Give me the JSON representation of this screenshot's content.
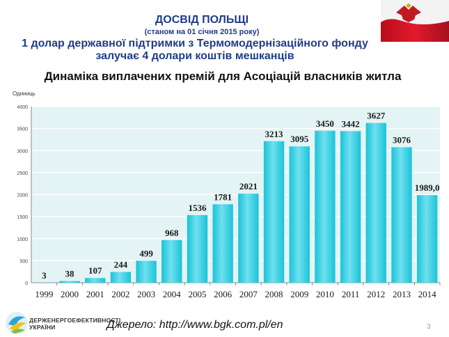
{
  "header": {
    "title": "ДОСВІД ПОЛЬЩІ",
    "subtitle": "(станом на 01 січня 2015 року)",
    "line1": "1 долар державної підтримки з Термомодернізаційного фонду",
    "line2": "залучає 4 долари коштів мешканців"
  },
  "chart_data": {
    "type": "bar",
    "title": "Динаміка виплачених премій для Асоціацій власників житла",
    "ylabel": "Одиниць",
    "xlabel": "",
    "ylim": [
      0,
      4000
    ],
    "yticks": [
      0,
      500,
      1000,
      1500,
      2000,
      2500,
      3000,
      3500,
      4000
    ],
    "ytick_labels": [
      "0",
      "500",
      "1000",
      "1500",
      "2000",
      "2500",
      "3000",
      "3500",
      "4000"
    ],
    "grid": true,
    "categories": [
      "1999",
      "2000",
      "2001",
      "2002",
      "2003",
      "2004",
      "2005",
      "2006",
      "2007",
      "2008",
      "2009",
      "2010",
      "2011",
      "2012",
      "2013",
      "2014"
    ],
    "values": [
      3,
      38,
      107,
      244,
      499,
      968,
      1536,
      1781,
      2021,
      3213,
      3095,
      3450,
      3442,
      3627,
      3076,
      1989.0
    ],
    "value_labels": [
      "3",
      "38",
      "107",
      "244",
      "499",
      "968",
      "1536",
      "1781",
      "2021",
      "3213",
      "3095",
      "3450",
      "3442",
      "3627",
      "3076",
      "1989,0"
    ],
    "colors": {
      "bar": "#19c3d9",
      "bar_light": "#6fe0ee",
      "plot_bg": "#e4f4f4",
      "grid": "#ffffff"
    }
  },
  "footer": {
    "logo_text_line1": "ДЕРЖЕНЕРГОЕФЕКТИВНОСТІ",
    "logo_text_line2": "УКРАЇНИ",
    "source": "Джерело: http://www.bgk.com.pl/en",
    "page_number": "3"
  }
}
